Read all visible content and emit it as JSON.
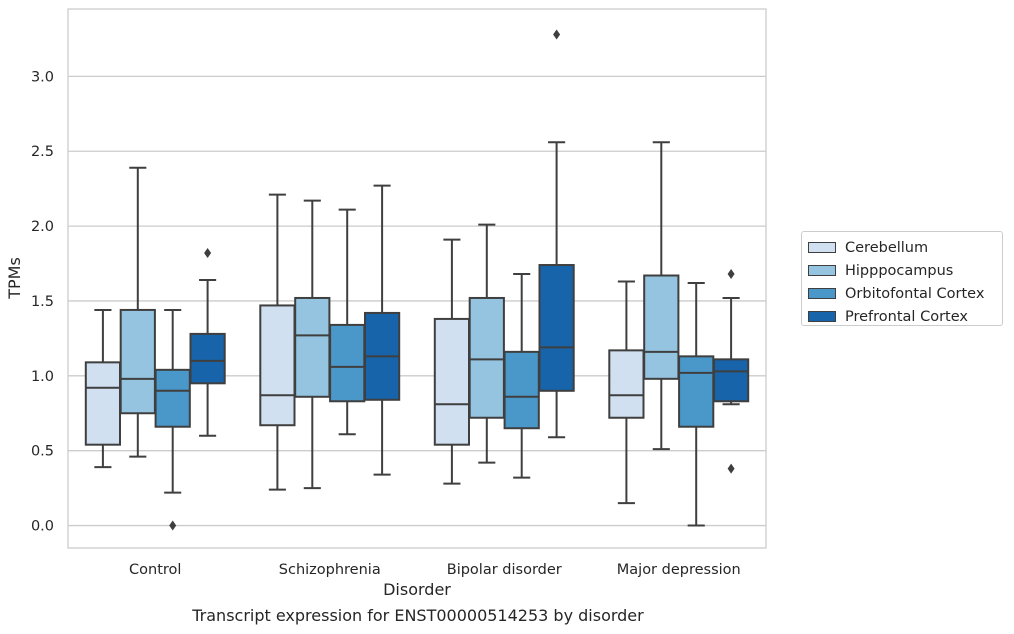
{
  "chart_data": {
    "type": "box",
    "title": "Transcript expression for ENST00000514253 by disorder",
    "xlabel": "Disorder",
    "ylabel": "TPMs",
    "categories": [
      "Control",
      "Schizophrenia",
      "Bipolar disorder",
      "Major depression"
    ],
    "ylim": [
      -0.15,
      3.45
    ],
    "yticks": [
      "0.0",
      "0.5",
      "1.0",
      "1.5",
      "2.0",
      "2.5",
      "3.0"
    ],
    "grid": "horizontal",
    "legend_position": "outside-right",
    "series": [
      {
        "name": "Cerebellum",
        "color": "#d0e0f0",
        "boxes": [
          {
            "whislo": 0.39,
            "q1": 0.54,
            "med": 0.92,
            "q3": 1.09,
            "whishi": 1.44,
            "fliers": []
          },
          {
            "whislo": 0.24,
            "q1": 0.67,
            "med": 0.87,
            "q3": 1.47,
            "whishi": 2.21,
            "fliers": []
          },
          {
            "whislo": 0.28,
            "q1": 0.54,
            "med": 0.81,
            "q3": 1.38,
            "whishi": 1.91,
            "fliers": []
          },
          {
            "whislo": 0.15,
            "q1": 0.72,
            "med": 0.87,
            "q3": 1.17,
            "whishi": 1.63,
            "fliers": []
          }
        ]
      },
      {
        "name": "Hipppocampus",
        "color": "#94c4df",
        "boxes": [
          {
            "whislo": 0.46,
            "q1": 0.75,
            "med": 0.98,
            "q3": 1.44,
            "whishi": 2.39,
            "fliers": []
          },
          {
            "whislo": 0.25,
            "q1": 0.86,
            "med": 1.27,
            "q3": 1.52,
            "whishi": 2.17,
            "fliers": []
          },
          {
            "whislo": 0.42,
            "q1": 0.72,
            "med": 1.11,
            "q3": 1.52,
            "whishi": 2.01,
            "fliers": []
          },
          {
            "whislo": 0.51,
            "q1": 0.98,
            "med": 1.16,
            "q3": 1.67,
            "whishi": 2.56,
            "fliers": []
          }
        ]
      },
      {
        "name": "Orbitofontal Cortex",
        "color": "#4a98c9",
        "boxes": [
          {
            "whislo": 0.22,
            "q1": 0.66,
            "med": 0.9,
            "q3": 1.04,
            "whishi": 1.44,
            "fliers": [
              0.0
            ]
          },
          {
            "whislo": 0.61,
            "q1": 0.83,
            "med": 1.06,
            "q3": 1.34,
            "whishi": 2.11,
            "fliers": []
          },
          {
            "whislo": 0.32,
            "q1": 0.65,
            "med": 0.86,
            "q3": 1.16,
            "whishi": 1.68,
            "fliers": []
          },
          {
            "whislo": 0.0,
            "q1": 0.66,
            "med": 1.02,
            "q3": 1.13,
            "whishi": 1.62,
            "fliers": []
          }
        ]
      },
      {
        "name": "Prefrontal Cortex",
        "color": "#1764ab",
        "boxes": [
          {
            "whislo": 0.6,
            "q1": 0.95,
            "med": 1.1,
            "q3": 1.28,
            "whishi": 1.64,
            "fliers": [
              1.82
            ]
          },
          {
            "whislo": 0.34,
            "q1": 0.84,
            "med": 1.13,
            "q3": 1.42,
            "whishi": 2.27,
            "fliers": []
          },
          {
            "whislo": 0.59,
            "q1": 0.9,
            "med": 1.19,
            "q3": 1.74,
            "whishi": 2.56,
            "fliers": [
              3.28
            ]
          },
          {
            "whislo": 0.81,
            "q1": 0.83,
            "med": 1.03,
            "q3": 1.11,
            "whishi": 1.52,
            "fliers": [
              0.38,
              1.68
            ]
          }
        ]
      }
    ]
  }
}
